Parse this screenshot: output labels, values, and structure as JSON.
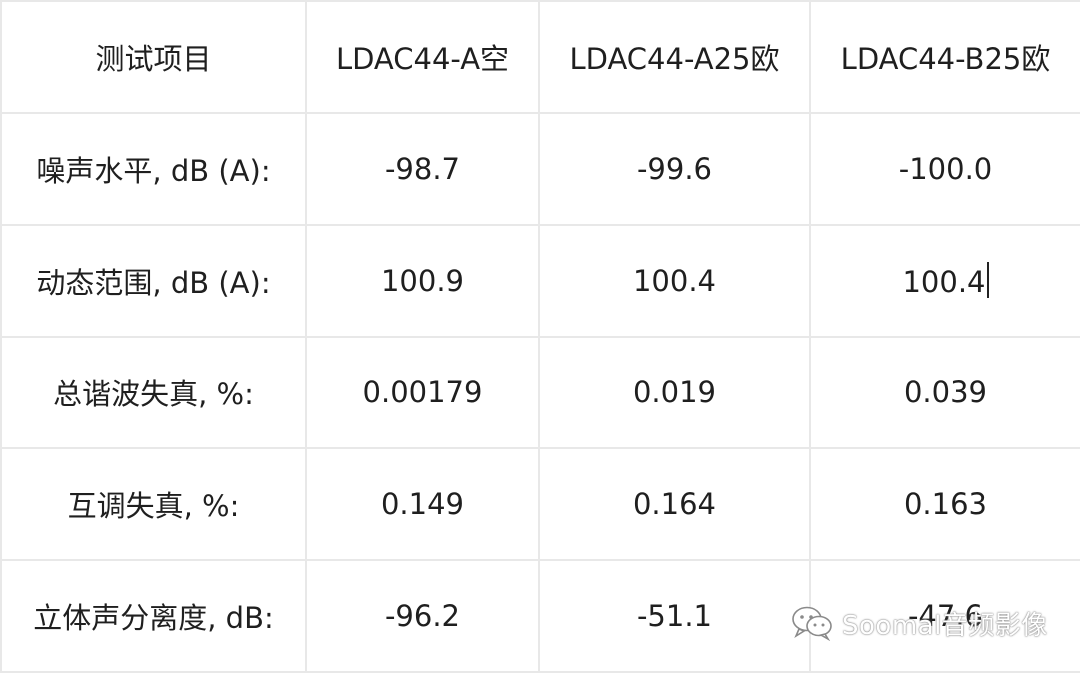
{
  "table": {
    "header": {
      "label": "测试项目",
      "columns": [
        "LDAC44-A空",
        "LDAC44-A25欧",
        "LDAC44-B25欧"
      ]
    },
    "rows": [
      {
        "label": "噪声水平, dB (A):",
        "values": [
          "-98.7",
          "-99.6",
          "-100.0"
        ]
      },
      {
        "label": "动态范围, dB (A):",
        "values": [
          "100.9",
          "100.4",
          "100.4"
        ]
      },
      {
        "label": "总谐波失真, %:",
        "values": [
          "0.00179",
          "0.019",
          "0.039"
        ]
      },
      {
        "label": "互调失真, %:",
        "values": [
          "0.149",
          "0.164",
          "0.163"
        ]
      },
      {
        "label": "立体声分离度, dB:",
        "values": [
          "-96.2",
          "-51.1",
          "-47.6"
        ]
      }
    ]
  },
  "watermark": {
    "icon": "wechat-icon",
    "text": "Soomal音频影像"
  }
}
